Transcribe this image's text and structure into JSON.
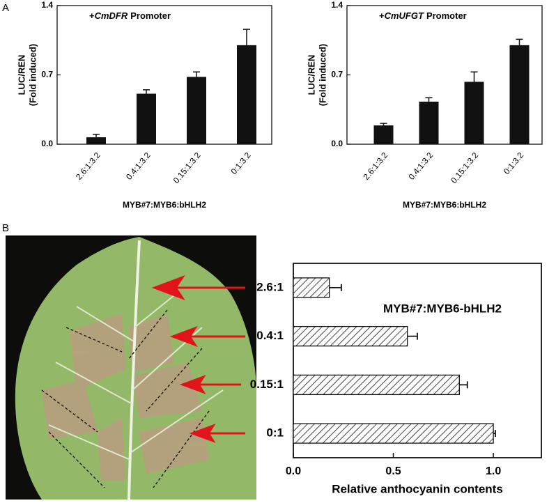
{
  "panel_labels": [
    "A",
    "B"
  ],
  "chart_data": [
    {
      "type": "bar",
      "title_parts": [
        "+",
        "CmDFR",
        "Promoter"
      ],
      "ylabel": [
        "LUC/REN",
        "(Fold induced)"
      ],
      "xlabel": "MYB#7:MYB6:bHLH2",
      "categories": [
        "2.6:1:3.2",
        "0.4:1:3.2",
        "0.15:1:3.2",
        "0:1:3.2"
      ],
      "values": [
        0.07,
        0.51,
        0.68,
        1.0
      ],
      "errors": [
        0.03,
        0.04,
        0.05,
        0.16
      ],
      "color": "#111111",
      "ylim": [
        0,
        1.4
      ],
      "yticks": [
        {
          "value": 0,
          "label": "0.0"
        },
        0.7,
        1.4
      ]
    },
    {
      "type": "bar",
      "title_parts": [
        "+",
        "CmUFGT",
        "Promoter"
      ],
      "ylabel": [
        "LUC/REN",
        "(Fold induced)"
      ],
      "xlabel": "MYB#7:MYB6:bHLH2",
      "categories": [
        "2.6:1:3.2",
        "0.4:1:3.2",
        "0.15:1:3.2",
        "0:1:3.2"
      ],
      "values": [
        0.19,
        0.43,
        0.63,
        1.0
      ],
      "errors": [
        0.02,
        0.04,
        0.1,
        0.06
      ],
      "color": "#111111",
      "ylim": [
        0,
        1.4
      ],
      "yticks": [
        {
          "value": 0,
          "label": "0.0"
        },
        0.7,
        1.4
      ]
    },
    {
      "type": "hbar",
      "annotation": "MYB#7:MYB6-bHLH2",
      "xlabel": "Relative anthocyanin contents",
      "categories": [
        "2.6:1",
        "0.4:1",
        "0.15:1",
        "0:1"
      ],
      "values": [
        0.18,
        0.57,
        0.83,
        1.0
      ],
      "errors": [
        0.06,
        0.05,
        0.04,
        0.01
      ],
      "hatch": true,
      "xlim": [
        0,
        1.24
      ],
      "xticks": [
        {
          "value": 0,
          "label": "0.0"
        },
        0.5,
        {
          "value": 1,
          "label": "1.0"
        }
      ]
    }
  ]
}
